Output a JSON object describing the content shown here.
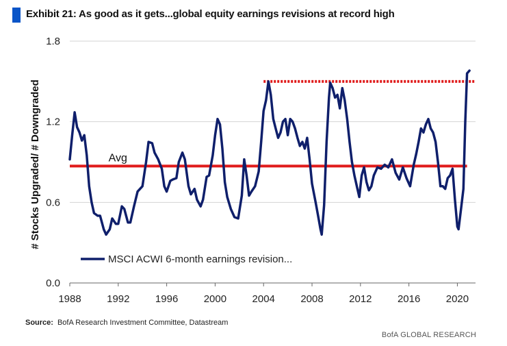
{
  "title": "Exhibit 21: As good as it gets...global equity earnings revisions at record high",
  "source_label": "Source:",
  "source_text": "BofA Research Investment Committee, Datastream",
  "footer": "BofA GLOBAL RESEARCH",
  "colors": {
    "series": "#0f1f6b",
    "avg": "#e01b1b",
    "peak": "#e01b1b",
    "accent": "#0a55c8"
  },
  "chart_data": {
    "type": "line",
    "title": "Exhibit 21: As good as it gets...global equity earnings revisions at record high",
    "xlabel": "",
    "ylabel": "# Stocks Upgraded/ # Downgraded",
    "xlim": [
      1988,
      2021.5
    ],
    "ylim": [
      0.0,
      1.8
    ],
    "xticks": [
      "1988",
      "1992",
      "1996",
      "2000",
      "2004",
      "2008",
      "2012",
      "2016",
      "2020"
    ],
    "yticks": [
      "0.0",
      "0.6",
      "1.2",
      "1.8"
    ],
    "grid": "horizontal",
    "legend": "bottom-left",
    "avg": {
      "label": "Avg",
      "value": 0.87
    },
    "peak_line": {
      "value": 1.5,
      "from": 2004,
      "to": 2021.5
    },
    "series": [
      {
        "name": "MSCI ACWI 6-month earnings revision...",
        "points": [
          [
            1988.0,
            0.92
          ],
          [
            1988.2,
            1.1
          ],
          [
            1988.4,
            1.27
          ],
          [
            1988.6,
            1.16
          ],
          [
            1988.8,
            1.12
          ],
          [
            1989.0,
            1.06
          ],
          [
            1989.2,
            1.1
          ],
          [
            1989.4,
            0.95
          ],
          [
            1989.6,
            0.72
          ],
          [
            1989.8,
            0.6
          ],
          [
            1990.0,
            0.52
          ],
          [
            1990.3,
            0.5
          ],
          [
            1990.5,
            0.5
          ],
          [
            1990.8,
            0.4
          ],
          [
            1991.0,
            0.36
          ],
          [
            1991.3,
            0.4
          ],
          [
            1991.5,
            0.48
          ],
          [
            1991.8,
            0.44
          ],
          [
            1992.0,
            0.44
          ],
          [
            1992.3,
            0.57
          ],
          [
            1992.5,
            0.55
          ],
          [
            1992.8,
            0.45
          ],
          [
            1993.0,
            0.45
          ],
          [
            1993.3,
            0.57
          ],
          [
            1993.6,
            0.68
          ],
          [
            1994.0,
            0.72
          ],
          [
            1994.3,
            0.9
          ],
          [
            1994.5,
            1.05
          ],
          [
            1994.8,
            1.04
          ],
          [
            1995.0,
            0.97
          ],
          [
            1995.3,
            0.92
          ],
          [
            1995.6,
            0.85
          ],
          [
            1995.8,
            0.72
          ],
          [
            1996.0,
            0.68
          ],
          [
            1996.3,
            0.76
          ],
          [
            1996.5,
            0.77
          ],
          [
            1996.8,
            0.78
          ],
          [
            1997.0,
            0.9
          ],
          [
            1997.3,
            0.97
          ],
          [
            1997.5,
            0.92
          ],
          [
            1997.8,
            0.72
          ],
          [
            1998.0,
            0.66
          ],
          [
            1998.3,
            0.7
          ],
          [
            1998.5,
            0.62
          ],
          [
            1998.8,
            0.57
          ],
          [
            1999.0,
            0.62
          ],
          [
            1999.3,
            0.79
          ],
          [
            1999.5,
            0.8
          ],
          [
            1999.8,
            0.95
          ],
          [
            2000.0,
            1.1
          ],
          [
            2000.2,
            1.22
          ],
          [
            2000.4,
            1.18
          ],
          [
            2000.6,
            1.0
          ],
          [
            2000.8,
            0.75
          ],
          [
            2001.0,
            0.64
          ],
          [
            2001.3,
            0.55
          ],
          [
            2001.6,
            0.49
          ],
          [
            2001.9,
            0.48
          ],
          [
            2002.2,
            0.65
          ],
          [
            2002.4,
            0.92
          ],
          [
            2002.6,
            0.8
          ],
          [
            2002.8,
            0.65
          ],
          [
            2003.0,
            0.68
          ],
          [
            2003.3,
            0.72
          ],
          [
            2003.6,
            0.83
          ],
          [
            2003.8,
            1.05
          ],
          [
            2004.0,
            1.28
          ],
          [
            2004.2,
            1.36
          ],
          [
            2004.4,
            1.5
          ],
          [
            2004.6,
            1.4
          ],
          [
            2004.8,
            1.22
          ],
          [
            2005.0,
            1.15
          ],
          [
            2005.2,
            1.08
          ],
          [
            2005.4,
            1.12
          ],
          [
            2005.6,
            1.2
          ],
          [
            2005.8,
            1.22
          ],
          [
            2006.0,
            1.1
          ],
          [
            2006.2,
            1.22
          ],
          [
            2006.4,
            1.2
          ],
          [
            2006.6,
            1.15
          ],
          [
            2006.8,
            1.08
          ],
          [
            2007.0,
            1.02
          ],
          [
            2007.2,
            1.05
          ],
          [
            2007.4,
            1.0
          ],
          [
            2007.6,
            1.08
          ],
          [
            2007.8,
            0.92
          ],
          [
            2008.0,
            0.74
          ],
          [
            2008.3,
            0.6
          ],
          [
            2008.5,
            0.5
          ],
          [
            2008.7,
            0.4
          ],
          [
            2008.8,
            0.36
          ],
          [
            2009.0,
            0.58
          ],
          [
            2009.2,
            1.05
          ],
          [
            2009.4,
            1.38
          ],
          [
            2009.5,
            1.49
          ],
          [
            2009.7,
            1.45
          ],
          [
            2009.9,
            1.38
          ],
          [
            2010.1,
            1.4
          ],
          [
            2010.3,
            1.3
          ],
          [
            2010.5,
            1.45
          ],
          [
            2010.7,
            1.36
          ],
          [
            2010.9,
            1.22
          ],
          [
            2011.1,
            1.05
          ],
          [
            2011.3,
            0.9
          ],
          [
            2011.5,
            0.8
          ],
          [
            2011.7,
            0.72
          ],
          [
            2011.9,
            0.64
          ],
          [
            2012.1,
            0.8
          ],
          [
            2012.3,
            0.86
          ],
          [
            2012.5,
            0.75
          ],
          [
            2012.7,
            0.69
          ],
          [
            2012.9,
            0.72
          ],
          [
            2013.1,
            0.8
          ],
          [
            2013.4,
            0.86
          ],
          [
            2013.7,
            0.85
          ],
          [
            2014.0,
            0.88
          ],
          [
            2014.3,
            0.86
          ],
          [
            2014.6,
            0.92
          ],
          [
            2014.9,
            0.82
          ],
          [
            2015.2,
            0.77
          ],
          [
            2015.5,
            0.86
          ],
          [
            2015.8,
            0.78
          ],
          [
            2016.1,
            0.72
          ],
          [
            2016.4,
            0.88
          ],
          [
            2016.6,
            0.96
          ],
          [
            2016.8,
            1.05
          ],
          [
            2017.0,
            1.15
          ],
          [
            2017.2,
            1.12
          ],
          [
            2017.4,
            1.18
          ],
          [
            2017.6,
            1.22
          ],
          [
            2017.8,
            1.15
          ],
          [
            2018.0,
            1.12
          ],
          [
            2018.2,
            1.05
          ],
          [
            2018.4,
            0.9
          ],
          [
            2018.6,
            0.72
          ],
          [
            2018.8,
            0.72
          ],
          [
            2019.0,
            0.7
          ],
          [
            2019.2,
            0.78
          ],
          [
            2019.4,
            0.8
          ],
          [
            2019.6,
            0.85
          ],
          [
            2019.8,
            0.62
          ],
          [
            2020.0,
            0.42
          ],
          [
            2020.1,
            0.4
          ],
          [
            2020.3,
            0.55
          ],
          [
            2020.5,
            0.7
          ],
          [
            2020.65,
            1.2
          ],
          [
            2020.8,
            1.56
          ],
          [
            2021.0,
            1.58
          ]
        ]
      }
    ]
  }
}
